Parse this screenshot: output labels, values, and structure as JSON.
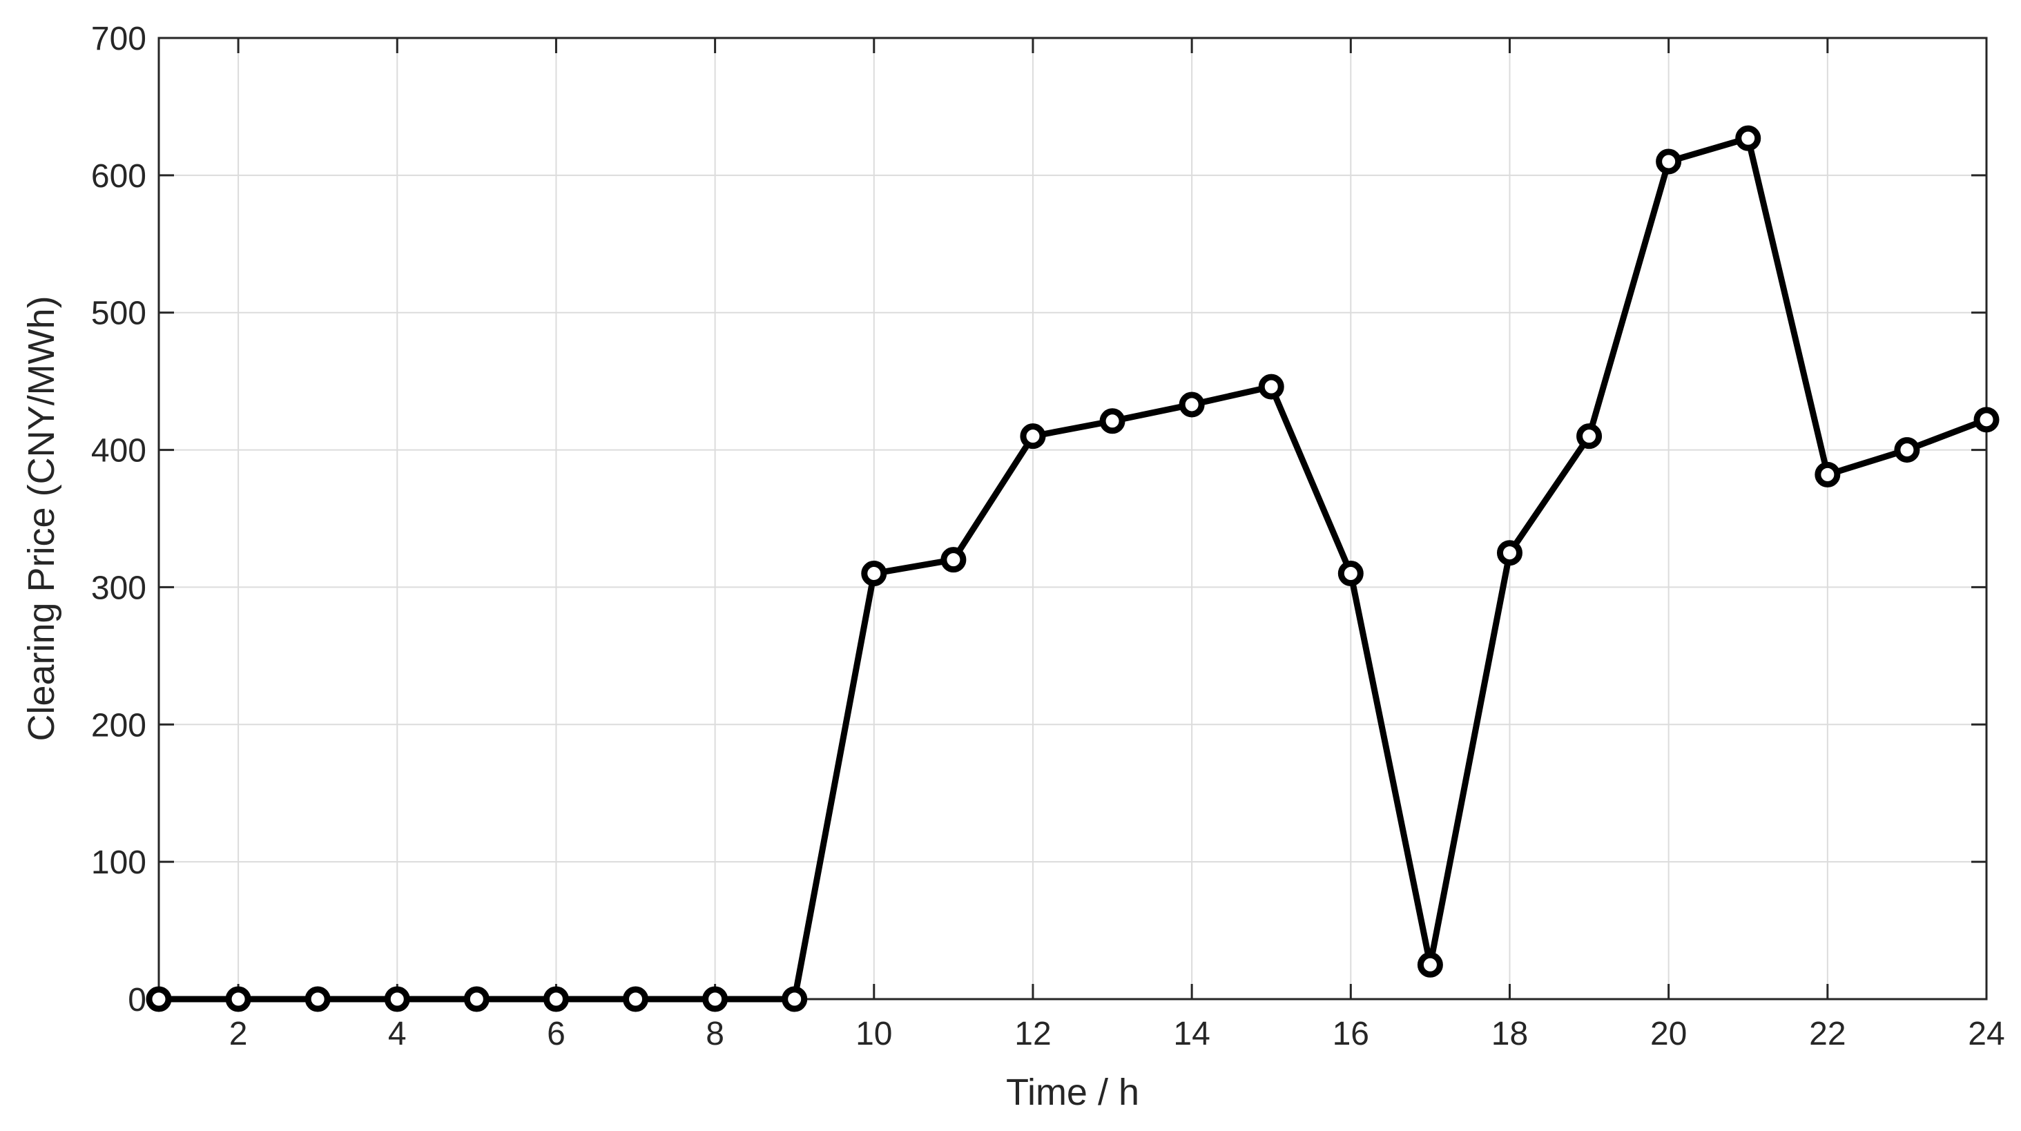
{
  "chart_data": {
    "type": "line",
    "title": "",
    "xlabel": "Time / h",
    "ylabel": "Clearing Price (CNY/MWh)",
    "xlim": [
      1,
      24
    ],
    "ylim": [
      0,
      700
    ],
    "xticks": [
      2,
      4,
      6,
      8,
      10,
      12,
      14,
      16,
      18,
      20,
      22,
      24
    ],
    "yticks": [
      0,
      100,
      200,
      300,
      400,
      500,
      600,
      700
    ],
    "grid": true,
    "legend": "none",
    "colors": {
      "line": "#000000",
      "marker_fill": "#ffffff",
      "grid": "#dcdcdc",
      "axes": "#262626"
    },
    "series": [
      {
        "x": [
          1,
          2,
          3,
          4,
          5,
          6,
          7,
          8,
          9,
          10,
          11,
          12,
          13,
          14,
          15,
          16,
          17,
          18,
          19,
          20,
          21,
          22,
          23,
          24
        ],
        "values": [
          0,
          0,
          0,
          0,
          0,
          0,
          0,
          0,
          0,
          310,
          320,
          410,
          421,
          433,
          446,
          310,
          25,
          325,
          410,
          610,
          627,
          382,
          400,
          422
        ]
      }
    ]
  }
}
